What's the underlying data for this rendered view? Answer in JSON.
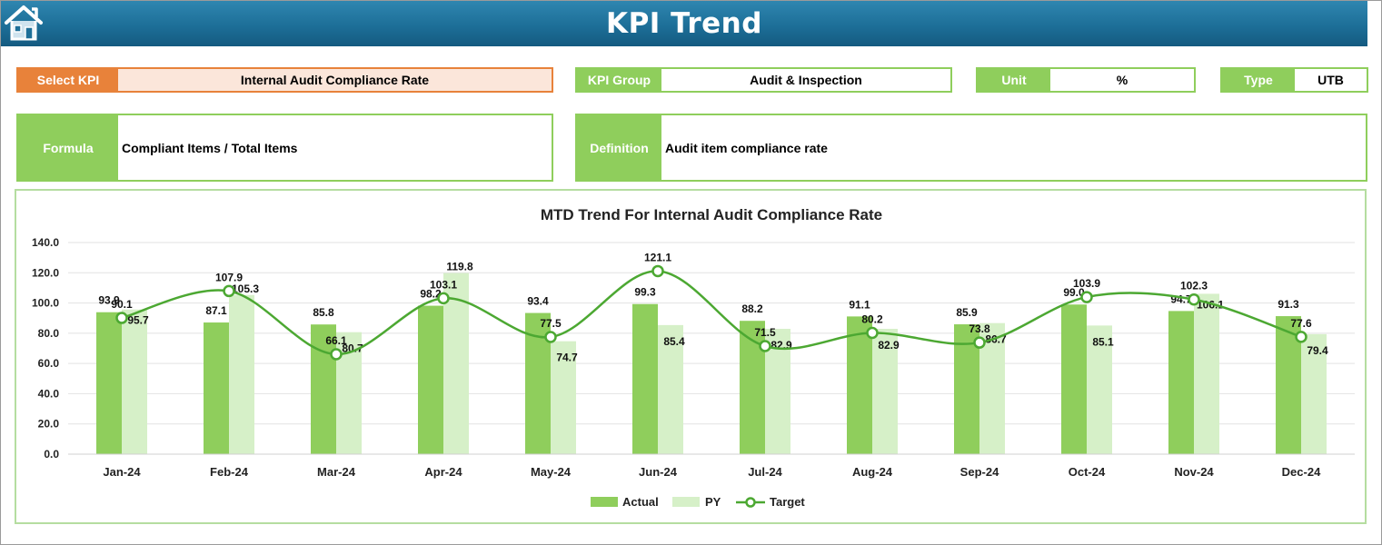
{
  "header": {
    "title": "KPI Trend",
    "home_icon": "home-icon"
  },
  "selectors": {
    "select_kpi": {
      "label": "Select KPI",
      "value": "Internal Audit Compliance Rate"
    },
    "kpi_group": {
      "label": "KPI Group",
      "value": "Audit & Inspection"
    },
    "unit": {
      "label": "Unit",
      "value": "%"
    },
    "type": {
      "label": "Type",
      "value": "UTB"
    }
  },
  "formula": {
    "label": "Formula",
    "value": "Compliant Items / Total Items"
  },
  "definition": {
    "label": "Definition",
    "value": "Audit item compliance rate"
  },
  "colors": {
    "actual": "#8fce5c",
    "py": "#d6f0c8",
    "target": "#4ca832",
    "accent_orange": "#e8823a",
    "header_blue": "#1d6f98"
  },
  "chart_data": {
    "type": "bar",
    "title": "MTD Trend For Internal Audit Compliance Rate",
    "categories": [
      "Jan-24",
      "Feb-24",
      "Mar-24",
      "Apr-24",
      "May-24",
      "Jun-24",
      "Jul-24",
      "Aug-24",
      "Sep-24",
      "Oct-24",
      "Nov-24",
      "Dec-24"
    ],
    "ylim": [
      0,
      140
    ],
    "yticks": [
      "0.0",
      "20.0",
      "40.0",
      "60.0",
      "80.0",
      "100.0",
      "120.0",
      "140.0"
    ],
    "grid": true,
    "legend_position": "bottom",
    "series": [
      {
        "name": "Actual",
        "type": "bar",
        "values": [
          93.9,
          87.1,
          85.8,
          98.2,
          93.4,
          99.3,
          88.2,
          91.1,
          85.9,
          99.0,
          94.7,
          91.3
        ]
      },
      {
        "name": "PY",
        "type": "bar",
        "values": [
          95.7,
          105.3,
          80.7,
          119.8,
          74.7,
          85.4,
          82.9,
          82.9,
          86.7,
          85.1,
          106.1,
          79.4
        ]
      },
      {
        "name": "Target",
        "type": "line",
        "values": [
          90.1,
          107.9,
          66.1,
          103.1,
          77.5,
          121.1,
          71.5,
          80.2,
          73.8,
          103.9,
          102.3,
          77.6
        ]
      }
    ]
  }
}
